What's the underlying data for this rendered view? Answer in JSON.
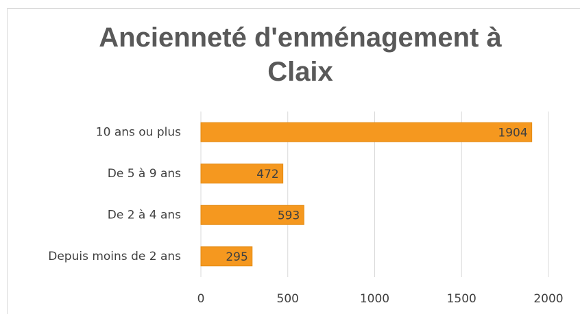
{
  "chart_data": {
    "type": "bar",
    "orientation": "horizontal",
    "title": "Ancienneté d'enménagement à Claix",
    "categories": [
      "10 ans ou plus",
      "De 5 à 9 ans",
      "De 2 à 4 ans",
      "Depuis moins de 2 ans"
    ],
    "values": [
      1904,
      472,
      593,
      295
    ],
    "color": "#f5981f",
    "xlim": [
      0,
      2000
    ],
    "xticks": [
      0,
      500,
      1000,
      1500,
      2000
    ],
    "grid": true
  }
}
